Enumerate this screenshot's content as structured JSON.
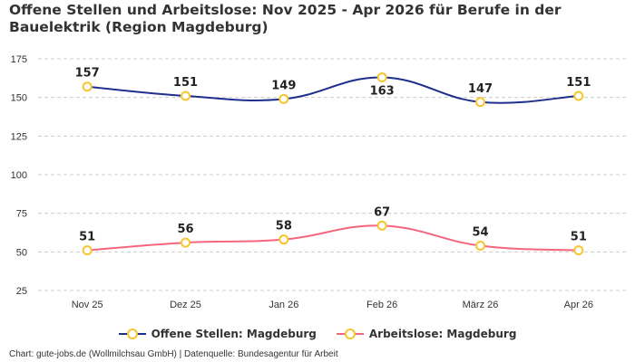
{
  "title": "Offene Stellen und Arbeitslose: Nov 2025 - Apr 2026 für Berufe in der Bauelektrik (Region Magdeburg)",
  "footer": "Chart: gute-jobs.de (Wollmilchsau GmbH) | Datenquelle: Bundesagentur für Arbeit",
  "colors": {
    "offene_stellen": "#1f2f8c",
    "arbeitslose": "#f4667e",
    "marker_border": "#f7c52d",
    "grid": "#cccccc"
  },
  "chart_data": {
    "type": "line",
    "categories": [
      "Nov 25",
      "Dez 25",
      "Jan 26",
      "Feb 26",
      "März 26",
      "Apr 26"
    ],
    "series": [
      {
        "name": "Offene Stellen: Magdeburg",
        "values": [
          157,
          151,
          149,
          163,
          147,
          151
        ]
      },
      {
        "name": "Arbeitslose: Magdeburg",
        "values": [
          51,
          56,
          58,
          67,
          54,
          51
        ]
      }
    ],
    "y_ticks": [
      "25",
      "50",
      "75",
      "100",
      "125",
      "150",
      "175"
    ],
    "ylim": [
      25,
      175
    ],
    "grid": true,
    "legend_position": "bottom"
  }
}
